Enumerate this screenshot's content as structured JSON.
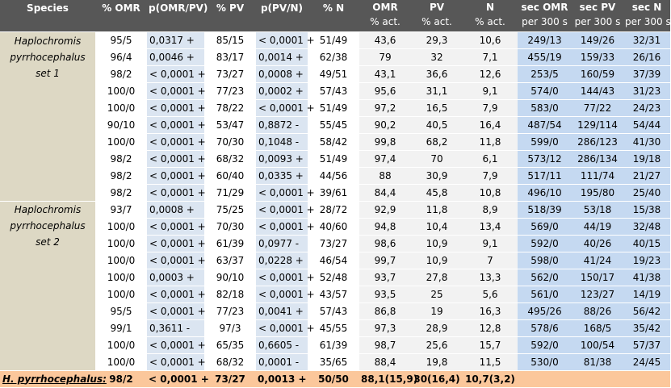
{
  "headers": [
    {
      "main": "Species",
      "sub": ""
    },
    {
      "main": "% OMR",
      "sub": ""
    },
    {
      "main": "p(OMR/PV)",
      "sub": ""
    },
    {
      "main": "% PV",
      "sub": ""
    },
    {
      "main": "p(PV/N)",
      "sub": ""
    },
    {
      "main": "% N",
      "sub": ""
    },
    {
      "main": "OMR",
      "sub": "% act."
    },
    {
      "main": "PV",
      "sub": "% act."
    },
    {
      "main": "N",
      "sub": "% act."
    },
    {
      "main": "sec OMR",
      "sub": "per 300 s"
    },
    {
      "main": "sec PV",
      "sub": "per 300 s"
    },
    {
      "main": "sec N",
      "sub": "per 300 s"
    }
  ],
  "species_set1": [
    "Haplochromis",
    "pyrrhocephalus",
    "set 1"
  ],
  "species_set2": [
    "Haplochromis",
    "pyrrhocephalus",
    "set 2"
  ],
  "rows": [
    [
      "95/5",
      "0,0317 +",
      "85/15",
      "< 0,0001 +",
      "51/49",
      "43,6",
      "29,3",
      "10,6",
      "249/13",
      "149/26",
      "32/31"
    ],
    [
      "96/4",
      "0,0046 +",
      "83/17",
      "0,0014 +",
      "62/38",
      "79",
      "32",
      "7,1",
      "455/19",
      "159/33",
      "26/16"
    ],
    [
      "98/2",
      "< 0,0001 +",
      "73/27",
      "0,0008 +",
      "49/51",
      "43,1",
      "36,6",
      "12,6",
      "253/5",
      "160/59",
      "37/39"
    ],
    [
      "100/0",
      "< 0,0001 +",
      "77/23",
      "0,0002 +",
      "57/43",
      "95,6",
      "31,1",
      "9,1",
      "574/0",
      "144/43",
      "31/23"
    ],
    [
      "100/0",
      "< 0,0001 +",
      "78/22",
      "< 0,0001 +",
      "51/49",
      "97,2",
      "16,5",
      "7,9",
      "583/0",
      "77/22",
      "24/23"
    ],
    [
      "90/10",
      "< 0,0001 +",
      "53/47",
      "0,8872 -",
      "55/45",
      "90,2",
      "40,5",
      "16,4",
      "487/54",
      "129/114",
      "54/44"
    ],
    [
      "100/0",
      "< 0,0001 +",
      "70/30",
      "0,1048 -",
      "58/42",
      "99,8",
      "68,2",
      "11,8",
      "599/0",
      "286/123",
      "41/30"
    ],
    [
      "98/2",
      "< 0,0001 +",
      "68/32",
      "0,0093 +",
      "51/49",
      "97,4",
      "70",
      "6,1",
      "573/12",
      "286/134",
      "19/18"
    ],
    [
      "98/2",
      "< 0,0001 +",
      "60/40",
      "0,0335 +",
      "44/56",
      "88",
      "30,9",
      "7,9",
      "517/11",
      "111/74",
      "21/27"
    ],
    [
      "98/2",
      "< 0,0001 +",
      "71/29",
      "< 0,0001 +",
      "39/61",
      "84,4",
      "45,8",
      "10,8",
      "496/10",
      "195/80",
      "25/40"
    ],
    [
      "93/7",
      "0,0008 +",
      "75/25",
      "< 0,0001 +",
      "28/72",
      "92,9",
      "11,8",
      "8,9",
      "518/39",
      "53/18",
      "15/38"
    ],
    [
      "100/0",
      "< 0,0001 +",
      "70/30",
      "< 0,0001 +",
      "40/60",
      "94,8",
      "10,4",
      "13,4",
      "569/0",
      "44/19",
      "32/48"
    ],
    [
      "100/0",
      "< 0,0001 +",
      "61/39",
      "0,0977 -",
      "73/27",
      "98,6",
      "10,9",
      "9,1",
      "592/0",
      "40/26",
      "40/15"
    ],
    [
      "100/0",
      "< 0,0001 +",
      "63/37",
      "0,0228 +",
      "46/54",
      "99,7",
      "10,9",
      "7",
      "598/0",
      "41/24",
      "19/23"
    ],
    [
      "100/0",
      "0,0003 +",
      "90/10",
      "< 0,0001 +",
      "52/48",
      "93,7",
      "27,8",
      "13,3",
      "562/0",
      "150/17",
      "41/38"
    ],
    [
      "100/0",
      "< 0,0001 +",
      "82/18",
      "< 0,0001 +",
      "43/57",
      "93,5",
      "25",
      "5,6",
      "561/0",
      "123/27",
      "14/19"
    ],
    [
      "95/5",
      "< 0,0001 +",
      "77/23",
      "0,0041 +",
      "57/43",
      "86,8",
      "19",
      "16,3",
      "495/26",
      "88/26",
      "56/42"
    ],
    [
      "99/1",
      "0,3611 -",
      "97/3",
      "< 0,0001 +",
      "45/55",
      "97,3",
      "28,9",
      "12,8",
      "578/6",
      "168/5",
      "35/42"
    ],
    [
      "100/0",
      "< 0,0001 +",
      "65/35",
      "0,6605 -",
      "61/39",
      "98,7",
      "25,6",
      "15,7",
      "592/0",
      "100/54",
      "57/37"
    ],
    [
      "100/0",
      "< 0,0001 +",
      "68/32",
      "0,0001 -",
      "35/65",
      "88,4",
      "19,8",
      "11,5",
      "530/0",
      "81/38",
      "24/45"
    ]
  ],
  "summary": [
    "H. pyrrhocephalus:",
    "98/2",
    "< 0,0001 +",
    "73/27",
    "0,0013 +",
    "50/50",
    "88,1(15,9)",
    "30(16,4)",
    "10,7(3,2)",
    "",
    "",
    ""
  ]
}
